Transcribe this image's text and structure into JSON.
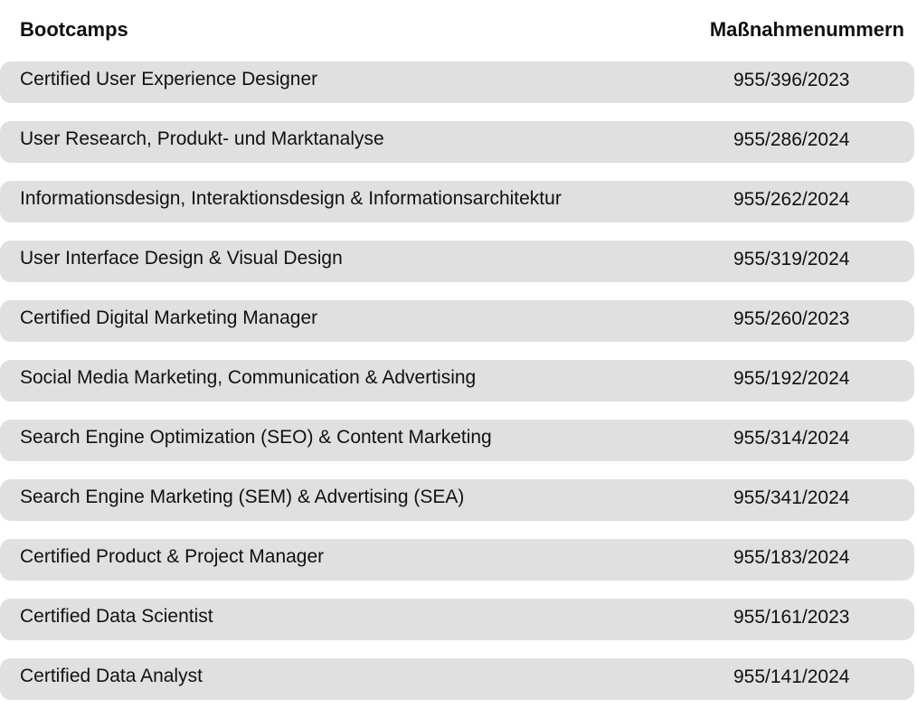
{
  "header": {
    "title": "Bootcamps",
    "numbers_label": "Maßnahmenummern"
  },
  "rows": [
    {
      "name": "Certified User Experience Designer",
      "number": "955/396/2023"
    },
    {
      "name": "User Research, Produkt- und Marktanalyse",
      "number": "955/286/2024"
    },
    {
      "name": "Informationsdesign, Interaktionsdesign & Informationsarchitektur",
      "number": "955/262/2024"
    },
    {
      "name": "User Interface Design & Visual Design",
      "number": "955/319/2024"
    },
    {
      "name": "Certified Digital Marketing Manager",
      "number": "955/260/2023"
    },
    {
      "name": "Social Media Marketing, Communication & Advertising",
      "number": "955/192/2024"
    },
    {
      "name": "Search Engine Optimization (SEO) & Content Marketing",
      "number": "955/314/2024"
    },
    {
      "name": "Search Engine Marketing (SEM) & Advertising (SEA)",
      "number": "955/341/2024"
    },
    {
      "name": "Certified Product & Project Manager",
      "number": "955/183/2024"
    },
    {
      "name": "Certified Data Scientist",
      "number": "955/161/2023"
    },
    {
      "name": "Certified Data Analyst",
      "number": "955/141/2024"
    }
  ]
}
